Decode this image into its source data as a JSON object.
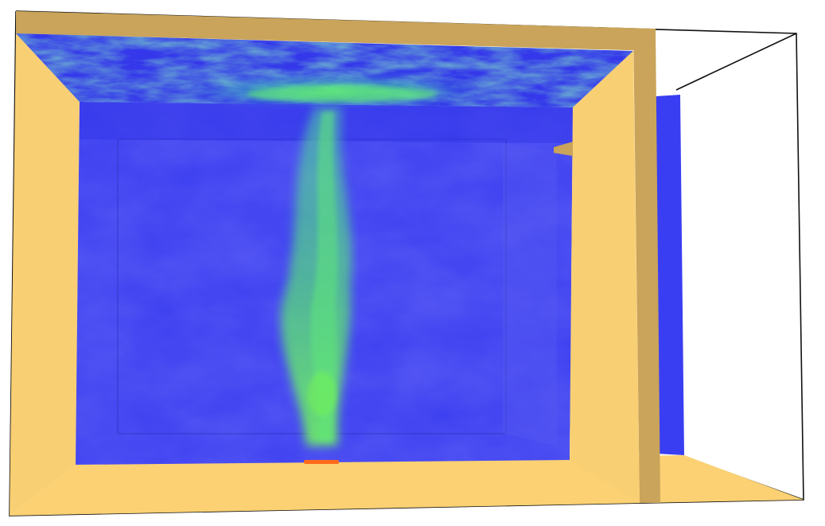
{
  "scene": {
    "kind": "3D CFD visualization",
    "colors": {
      "background": "#ffffff",
      "wall_light": "#f9cf74",
      "wall_dark": "#c9a45a",
      "floor": "#fbd173",
      "slice_base": "#3c3ff0",
      "slice_deep": "#2b2ee8",
      "plume": "#55e07a",
      "ceiling_hot": "#4fe37a",
      "fire_source": "#ff6a1a",
      "outline": "#111111"
    }
  }
}
